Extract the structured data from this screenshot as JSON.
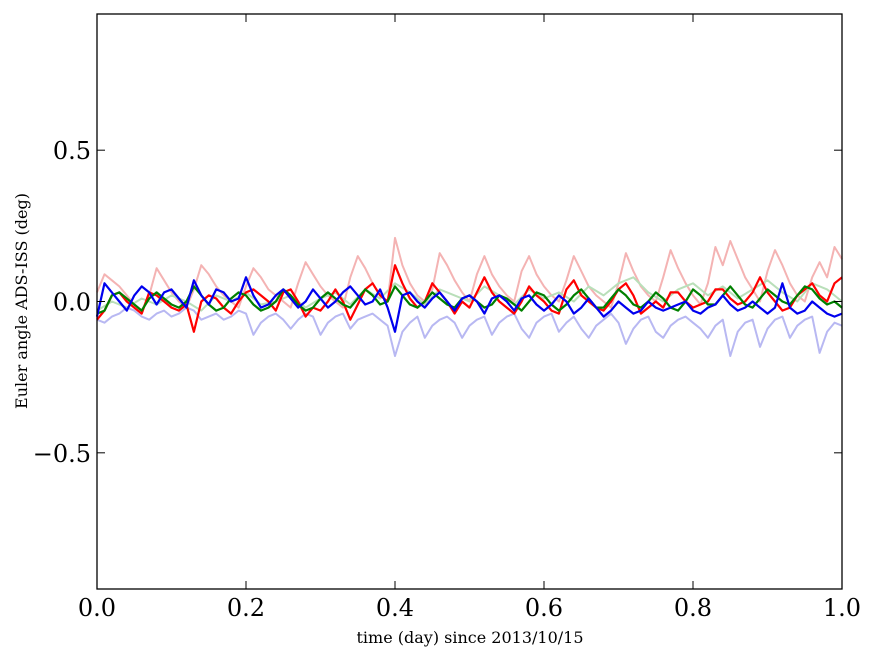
{
  "chart_data": {
    "type": "line",
    "title": "",
    "xlabel": "time (day) since 2013/10/15",
    "ylabel": "Euler angle ADS-ISS (deg)",
    "xlim": [
      0.0,
      1.0
    ],
    "ylim": [
      -0.95,
      0.95
    ],
    "xticks": [
      0.0,
      0.2,
      0.4,
      0.6,
      0.8,
      1.0
    ],
    "xtick_labels": [
      "0.0",
      "0.2",
      "0.4",
      "0.6",
      "0.8",
      "1.0"
    ],
    "yticks": [
      -0.5,
      0.0,
      0.5
    ],
    "ytick_labels": [
      "−0.5",
      "0.0",
      "0.5"
    ],
    "grid": false,
    "legend": "none",
    "series": [
      {
        "color": "#f4b3b3",
        "x": [
          0.0,
          0.01,
          0.02,
          0.03,
          0.04,
          0.05,
          0.06,
          0.07,
          0.08,
          0.09,
          0.1,
          0.11,
          0.12,
          0.13,
          0.14,
          0.15,
          0.16,
          0.17,
          0.18,
          0.19,
          0.2,
          0.21,
          0.22,
          0.23,
          0.24,
          0.25,
          0.26,
          0.27,
          0.28,
          0.29,
          0.3,
          0.31,
          0.32,
          0.33,
          0.34,
          0.35,
          0.36,
          0.37,
          0.38,
          0.39,
          0.4,
          0.41,
          0.42,
          0.43,
          0.44,
          0.45,
          0.46,
          0.47,
          0.48,
          0.49,
          0.5,
          0.51,
          0.52,
          0.53,
          0.54,
          0.55,
          0.56,
          0.57,
          0.58,
          0.59,
          0.6,
          0.61,
          0.62,
          0.63,
          0.64,
          0.65,
          0.66,
          0.67,
          0.68,
          0.69,
          0.7,
          0.71,
          0.72,
          0.73,
          0.74,
          0.75,
          0.76,
          0.77,
          0.78,
          0.79,
          0.8,
          0.81,
          0.82,
          0.83,
          0.84,
          0.85,
          0.86,
          0.87,
          0.88,
          0.89,
          0.9,
          0.91,
          0.92,
          0.93,
          0.94,
          0.95,
          0.96,
          0.97,
          0.98,
          0.99,
          1.0
        ],
        "y": [
          0.03,
          0.09,
          0.07,
          0.05,
          0.02,
          -0.01,
          -0.03,
          0.02,
          0.11,
          0.07,
          0.03,
          0.0,
          -0.02,
          0.04,
          0.12,
          0.09,
          0.05,
          0.02,
          0.0,
          -0.02,
          0.05,
          0.11,
          0.08,
          0.04,
          0.02,
          0.0,
          -0.02,
          0.06,
          0.13,
          0.09,
          0.05,
          0.02,
          0.0,
          -0.02,
          0.08,
          0.15,
          0.11,
          0.06,
          0.02,
          0.0,
          0.21,
          0.12,
          0.06,
          0.02,
          0.0,
          0.04,
          0.16,
          0.12,
          0.07,
          0.03,
          0.0,
          0.09,
          0.15,
          0.09,
          0.05,
          0.02,
          0.0,
          0.1,
          0.15,
          0.09,
          0.05,
          0.02,
          0.0,
          0.07,
          0.15,
          0.1,
          0.05,
          0.02,
          0.0,
          -0.02,
          0.06,
          0.16,
          0.1,
          0.05,
          0.02,
          0.0,
          0.08,
          0.17,
          0.11,
          0.06,
          0.02,
          -0.01,
          0.06,
          0.18,
          0.12,
          0.2,
          0.14,
          0.08,
          0.04,
          0.0,
          0.1,
          0.17,
          0.12,
          0.06,
          0.02,
          0.0,
          0.08,
          0.13,
          0.08,
          0.18,
          0.14
        ]
      },
      {
        "color": "#b9dfb9",
        "x": [
          0.0,
          0.02,
          0.04,
          0.06,
          0.08,
          0.1,
          0.12,
          0.14,
          0.16,
          0.18,
          0.2,
          0.22,
          0.24,
          0.26,
          0.28,
          0.3,
          0.32,
          0.34,
          0.36,
          0.38,
          0.4,
          0.42,
          0.44,
          0.46,
          0.48,
          0.5,
          0.52,
          0.54,
          0.56,
          0.58,
          0.6,
          0.62,
          0.64,
          0.66,
          0.68,
          0.7,
          0.72,
          0.74,
          0.76,
          0.78,
          0.8,
          0.82,
          0.84,
          0.86,
          0.88,
          0.9,
          0.92,
          0.94,
          0.96,
          0.98,
          1.0
        ],
        "y": [
          -0.03,
          0.0,
          -0.02,
          0.01,
          -0.01,
          0.02,
          0.0,
          -0.03,
          0.02,
          0.0,
          0.03,
          -0.01,
          0.0,
          0.02,
          -0.02,
          0.01,
          0.03,
          -0.01,
          0.04,
          0.01,
          0.06,
          0.03,
          -0.01,
          0.04,
          0.02,
          0.0,
          0.05,
          0.02,
          -0.01,
          0.04,
          0.01,
          0.03,
          0.0,
          0.05,
          0.02,
          0.06,
          0.08,
          0.03,
          0.0,
          0.04,
          0.06,
          0.02,
          0.05,
          0.01,
          0.04,
          0.07,
          0.03,
          0.0,
          0.06,
          0.04,
          0.0
        ]
      },
      {
        "color": "#b8b8f2",
        "x": [
          0.0,
          0.01,
          0.02,
          0.03,
          0.04,
          0.05,
          0.06,
          0.07,
          0.08,
          0.09,
          0.1,
          0.11,
          0.12,
          0.13,
          0.14,
          0.15,
          0.16,
          0.17,
          0.18,
          0.19,
          0.2,
          0.21,
          0.22,
          0.23,
          0.24,
          0.25,
          0.26,
          0.27,
          0.28,
          0.29,
          0.3,
          0.31,
          0.32,
          0.33,
          0.34,
          0.35,
          0.36,
          0.37,
          0.38,
          0.39,
          0.4,
          0.41,
          0.42,
          0.43,
          0.44,
          0.45,
          0.46,
          0.47,
          0.48,
          0.49,
          0.5,
          0.51,
          0.52,
          0.53,
          0.54,
          0.55,
          0.56,
          0.57,
          0.58,
          0.59,
          0.6,
          0.61,
          0.62,
          0.63,
          0.64,
          0.65,
          0.66,
          0.67,
          0.68,
          0.69,
          0.7,
          0.71,
          0.72,
          0.73,
          0.74,
          0.75,
          0.76,
          0.77,
          0.78,
          0.79,
          0.8,
          0.81,
          0.82,
          0.83,
          0.84,
          0.85,
          0.86,
          0.87,
          0.88,
          0.89,
          0.9,
          0.91,
          0.92,
          0.93,
          0.94,
          0.95,
          0.96,
          0.97,
          0.98,
          0.99,
          1.0
        ],
        "y": [
          -0.06,
          -0.07,
          -0.05,
          -0.04,
          -0.02,
          -0.03,
          -0.05,
          -0.06,
          -0.04,
          -0.03,
          -0.05,
          -0.04,
          -0.02,
          -0.03,
          -0.06,
          -0.05,
          -0.04,
          -0.06,
          -0.05,
          -0.03,
          -0.04,
          -0.11,
          -0.07,
          -0.05,
          -0.04,
          -0.06,
          -0.09,
          -0.06,
          -0.04,
          -0.05,
          -0.11,
          -0.07,
          -0.05,
          -0.04,
          -0.09,
          -0.06,
          -0.05,
          -0.04,
          -0.06,
          -0.08,
          -0.18,
          -0.1,
          -0.07,
          -0.05,
          -0.12,
          -0.08,
          -0.06,
          -0.05,
          -0.07,
          -0.12,
          -0.08,
          -0.06,
          -0.05,
          -0.11,
          -0.07,
          -0.05,
          -0.04,
          -0.09,
          -0.12,
          -0.07,
          -0.05,
          -0.04,
          -0.1,
          -0.07,
          -0.05,
          -0.09,
          -0.12,
          -0.08,
          -0.06,
          -0.04,
          -0.07,
          -0.14,
          -0.09,
          -0.06,
          -0.05,
          -0.1,
          -0.12,
          -0.08,
          -0.06,
          -0.05,
          -0.07,
          -0.09,
          -0.12,
          -0.08,
          -0.06,
          -0.18,
          -0.1,
          -0.07,
          -0.06,
          -0.15,
          -0.09,
          -0.06,
          -0.05,
          -0.12,
          -0.08,
          -0.06,
          -0.05,
          -0.17,
          -0.1,
          -0.07,
          -0.08
        ]
      },
      {
        "color": "#ff0000",
        "x": [
          0.0,
          0.01,
          0.02,
          0.03,
          0.04,
          0.05,
          0.06,
          0.07,
          0.08,
          0.09,
          0.1,
          0.11,
          0.12,
          0.13,
          0.14,
          0.15,
          0.16,
          0.17,
          0.18,
          0.19,
          0.2,
          0.21,
          0.22,
          0.23,
          0.24,
          0.25,
          0.26,
          0.27,
          0.28,
          0.29,
          0.3,
          0.31,
          0.32,
          0.33,
          0.34,
          0.35,
          0.36,
          0.37,
          0.38,
          0.39,
          0.4,
          0.41,
          0.42,
          0.43,
          0.44,
          0.45,
          0.46,
          0.47,
          0.48,
          0.49,
          0.5,
          0.51,
          0.52,
          0.53,
          0.54,
          0.55,
          0.56,
          0.57,
          0.58,
          0.59,
          0.6,
          0.61,
          0.62,
          0.63,
          0.64,
          0.65,
          0.66,
          0.67,
          0.68,
          0.69,
          0.7,
          0.71,
          0.72,
          0.73,
          0.74,
          0.75,
          0.76,
          0.77,
          0.78,
          0.79,
          0.8,
          0.81,
          0.82,
          0.83,
          0.84,
          0.85,
          0.86,
          0.87,
          0.88,
          0.89,
          0.9,
          0.91,
          0.92,
          0.93,
          0.94,
          0.95,
          0.96,
          0.97,
          0.98,
          0.99,
          1.0
        ],
        "y": [
          -0.06,
          -0.03,
          0.02,
          0.03,
          0.0,
          -0.02,
          -0.04,
          0.03,
          0.02,
          0.0,
          -0.02,
          -0.03,
          -0.01,
          -0.1,
          0.0,
          0.02,
          0.01,
          -0.02,
          -0.04,
          0.0,
          0.03,
          0.04,
          0.02,
          0.0,
          -0.03,
          0.03,
          0.04,
          0.0,
          -0.05,
          -0.02,
          -0.03,
          0.0,
          0.04,
          0.0,
          -0.06,
          -0.01,
          0.04,
          0.06,
          0.02,
          0.0,
          0.12,
          0.06,
          0.01,
          -0.02,
          0.0,
          0.06,
          0.03,
          0.0,
          -0.04,
          0.0,
          -0.02,
          0.03,
          0.08,
          0.03,
          0.0,
          -0.02,
          -0.04,
          0.0,
          0.05,
          0.02,
          0.0,
          -0.03,
          -0.04,
          0.04,
          0.07,
          0.02,
          0.0,
          -0.02,
          -0.03,
          0.0,
          0.04,
          0.06,
          0.02,
          -0.04,
          -0.02,
          0.0,
          -0.02,
          0.03,
          0.03,
          0.0,
          -0.02,
          -0.01,
          0.0,
          0.04,
          0.04,
          0.01,
          -0.01,
          0.0,
          0.03,
          0.08,
          0.03,
          0.0,
          -0.03,
          -0.02,
          0.02,
          0.04,
          0.06,
          0.02,
          0.0,
          0.06,
          0.08
        ]
      },
      {
        "color": "#008000",
        "x": [
          0.0,
          0.01,
          0.02,
          0.03,
          0.04,
          0.05,
          0.06,
          0.07,
          0.08,
          0.09,
          0.1,
          0.11,
          0.12,
          0.13,
          0.14,
          0.15,
          0.16,
          0.17,
          0.18,
          0.19,
          0.2,
          0.21,
          0.22,
          0.23,
          0.24,
          0.25,
          0.26,
          0.27,
          0.28,
          0.29,
          0.3,
          0.31,
          0.32,
          0.33,
          0.34,
          0.35,
          0.36,
          0.37,
          0.38,
          0.39,
          0.4,
          0.41,
          0.42,
          0.43,
          0.44,
          0.45,
          0.46,
          0.47,
          0.48,
          0.49,
          0.5,
          0.51,
          0.52,
          0.53,
          0.54,
          0.55,
          0.56,
          0.57,
          0.58,
          0.59,
          0.6,
          0.61,
          0.62,
          0.63,
          0.64,
          0.65,
          0.66,
          0.67,
          0.68,
          0.69,
          0.7,
          0.71,
          0.72,
          0.73,
          0.74,
          0.75,
          0.76,
          0.77,
          0.78,
          0.79,
          0.8,
          0.81,
          0.82,
          0.83,
          0.84,
          0.85,
          0.86,
          0.87,
          0.88,
          0.89,
          0.9,
          0.91,
          0.92,
          0.93,
          0.94,
          0.95,
          0.96,
          0.97,
          0.98,
          0.99,
          1.0
        ],
        "y": [
          -0.04,
          -0.03,
          0.02,
          0.03,
          0.01,
          -0.01,
          -0.03,
          0.01,
          0.03,
          0.01,
          -0.01,
          -0.02,
          0.0,
          0.05,
          0.02,
          -0.01,
          -0.03,
          -0.02,
          0.01,
          0.03,
          0.02,
          -0.01,
          -0.03,
          -0.02,
          0.0,
          0.04,
          0.02,
          -0.01,
          -0.03,
          -0.02,
          0.01,
          0.03,
          0.01,
          -0.01,
          -0.02,
          0.01,
          0.04,
          0.02,
          -0.01,
          0.0,
          0.05,
          0.02,
          -0.01,
          -0.02,
          0.0,
          0.03,
          0.01,
          -0.01,
          -0.02,
          0.01,
          0.02,
          0.0,
          -0.02,
          -0.01,
          0.02,
          0.01,
          -0.01,
          -0.03,
          0.0,
          0.03,
          0.02,
          -0.01,
          -0.03,
          -0.01,
          0.02,
          0.04,
          0.01,
          -0.02,
          -0.02,
          0.01,
          0.04,
          0.02,
          -0.01,
          -0.02,
          0.0,
          0.03,
          0.01,
          -0.02,
          -0.03,
          0.0,
          0.04,
          0.02,
          -0.01,
          -0.01,
          0.02,
          0.05,
          0.02,
          -0.01,
          -0.02,
          0.01,
          0.04,
          0.02,
          0.0,
          -0.01,
          0.02,
          0.05,
          0.04,
          0.01,
          -0.01,
          0.0,
          -0.02
        ]
      },
      {
        "color": "#0000ee",
        "x": [
          0.0,
          0.01,
          0.02,
          0.03,
          0.04,
          0.05,
          0.06,
          0.07,
          0.08,
          0.09,
          0.1,
          0.11,
          0.12,
          0.13,
          0.14,
          0.15,
          0.16,
          0.17,
          0.18,
          0.19,
          0.2,
          0.21,
          0.22,
          0.23,
          0.24,
          0.25,
          0.26,
          0.27,
          0.28,
          0.29,
          0.3,
          0.31,
          0.32,
          0.33,
          0.34,
          0.35,
          0.36,
          0.37,
          0.38,
          0.39,
          0.4,
          0.41,
          0.42,
          0.43,
          0.44,
          0.45,
          0.46,
          0.47,
          0.48,
          0.49,
          0.5,
          0.51,
          0.52,
          0.53,
          0.54,
          0.55,
          0.56,
          0.57,
          0.58,
          0.59,
          0.6,
          0.61,
          0.62,
          0.63,
          0.64,
          0.65,
          0.66,
          0.67,
          0.68,
          0.69,
          0.7,
          0.71,
          0.72,
          0.73,
          0.74,
          0.75,
          0.76,
          0.77,
          0.78,
          0.79,
          0.8,
          0.81,
          0.82,
          0.83,
          0.84,
          0.85,
          0.86,
          0.87,
          0.88,
          0.89,
          0.9,
          0.91,
          0.92,
          0.93,
          0.94,
          0.95,
          0.96,
          0.97,
          0.98,
          0.99,
          1.0
        ],
        "y": [
          -0.05,
          0.06,
          0.03,
          0.0,
          -0.03,
          0.02,
          0.05,
          0.03,
          -0.01,
          0.03,
          0.04,
          0.01,
          -0.02,
          0.07,
          0.02,
          -0.01,
          0.04,
          0.03,
          0.0,
          0.01,
          0.08,
          0.02,
          -0.02,
          -0.01,
          0.02,
          0.04,
          0.01,
          -0.02,
          0.0,
          0.04,
          0.01,
          -0.02,
          0.0,
          0.03,
          0.05,
          0.02,
          -0.01,
          0.0,
          0.04,
          -0.02,
          -0.1,
          0.02,
          0.03,
          0.0,
          -0.02,
          0.01,
          0.03,
          0.0,
          -0.03,
          0.01,
          0.02,
          0.0,
          -0.04,
          0.01,
          0.02,
          0.0,
          -0.03,
          0.01,
          0.02,
          -0.01,
          -0.03,
          -0.01,
          0.02,
          0.0,
          -0.04,
          -0.02,
          0.01,
          -0.02,
          -0.05,
          -0.03,
          0.0,
          -0.02,
          -0.04,
          -0.03,
          0.0,
          -0.02,
          -0.03,
          -0.02,
          -0.01,
          0.0,
          -0.03,
          -0.04,
          -0.02,
          -0.01,
          0.02,
          -0.01,
          -0.03,
          -0.02,
          0.0,
          -0.02,
          -0.04,
          -0.02,
          0.06,
          -0.02,
          -0.04,
          -0.03,
          0.0,
          -0.02,
          -0.04,
          -0.05,
          -0.04
        ]
      }
    ]
  }
}
